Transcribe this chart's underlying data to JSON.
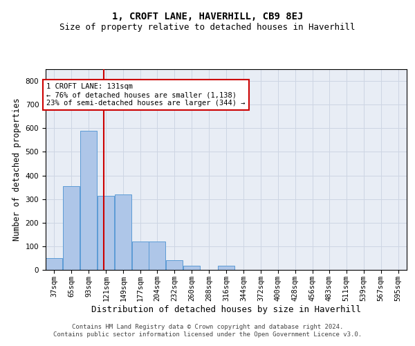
{
  "title": "1, CROFT LANE, HAVERHILL, CB9 8EJ",
  "subtitle": "Size of property relative to detached houses in Haverhill",
  "xlabel": "Distribution of detached houses by size in Haverhill",
  "ylabel": "Number of detached properties",
  "footer_line1": "Contains HM Land Registry data © Crown copyright and database right 2024.",
  "footer_line2": "Contains public sector information licensed under the Open Government Licence v3.0.",
  "bin_labels": [
    "37sqm",
    "65sqm",
    "93sqm",
    "121sqm",
    "149sqm",
    "177sqm",
    "204sqm",
    "232sqm",
    "260sqm",
    "288sqm",
    "316sqm",
    "344sqm",
    "372sqm",
    "400sqm",
    "428sqm",
    "456sqm",
    "483sqm",
    "511sqm",
    "539sqm",
    "567sqm",
    "595sqm"
  ],
  "bin_edges": [
    37,
    65,
    93,
    121,
    149,
    177,
    204,
    232,
    260,
    288,
    316,
    344,
    372,
    400,
    428,
    456,
    483,
    511,
    539,
    567,
    595
  ],
  "bar_heights": [
    50,
    355,
    590,
    315,
    320,
    120,
    120,
    40,
    18,
    0,
    18,
    0,
    0,
    0,
    0,
    0,
    0,
    0,
    0,
    0
  ],
  "bar_color": "#aec6e8",
  "bar_edgecolor": "#5b9bd5",
  "property_size": 131,
  "property_line_color": "#cc0000",
  "annotation_text": "1 CROFT LANE: 131sqm\n← 76% of detached houses are smaller (1,138)\n23% of semi-detached houses are larger (344) →",
  "annotation_box_edgecolor": "#cc0000",
  "ylim": [
    0,
    850
  ],
  "yticks": [
    0,
    100,
    200,
    300,
    400,
    500,
    600,
    700,
    800
  ],
  "grid_color": "#cdd5e3",
  "background_color": "#e8edf5",
  "title_fontsize": 10,
  "subtitle_fontsize": 9,
  "axis_label_fontsize": 8.5,
  "tick_fontsize": 7.5,
  "footer_fontsize": 6.5,
  "annotation_fontsize": 7.5
}
